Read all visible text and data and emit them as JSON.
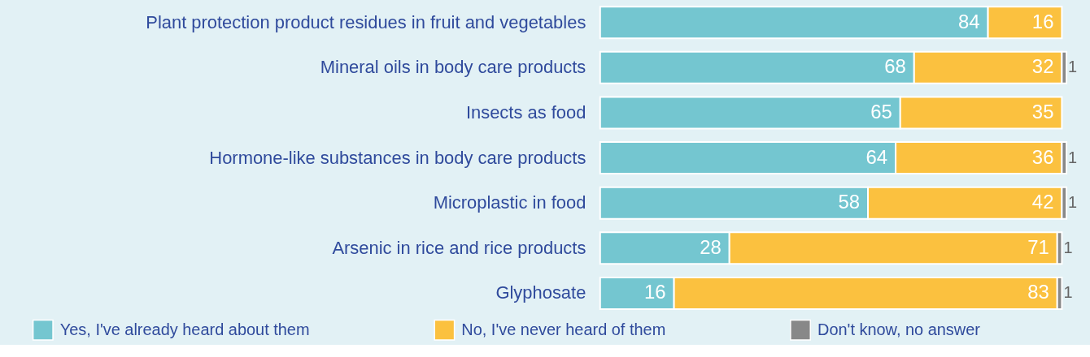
{
  "chart_data": {
    "type": "bar",
    "orientation": "horizontal",
    "stacked": true,
    "data_labels": true,
    "legend": "bottom",
    "tick_labels": "y",
    "xlim": [
      0,
      101
    ],
    "categories": [
      "Plant protection product residues in fruit and vegetables",
      "Mineral oils in body care products",
      "Insects as food",
      "Hormone-like substances in body care products",
      "Microplastic in food",
      "Arsenic in rice and rice products",
      "Glyphosate"
    ],
    "series": [
      {
        "name": "Yes, I've already heard about them",
        "color": "#74c6d0",
        "values": [
          84,
          68,
          65,
          64,
          58,
          28,
          16
        ]
      },
      {
        "name": "No, I've never heard of them",
        "color": "#fbc13f",
        "values": [
          16,
          32,
          35,
          36,
          42,
          71,
          83
        ]
      },
      {
        "name": "Don't know, no answer",
        "color": "#888888",
        "values": [
          null,
          1,
          null,
          1,
          1,
          1,
          1
        ]
      }
    ]
  }
}
